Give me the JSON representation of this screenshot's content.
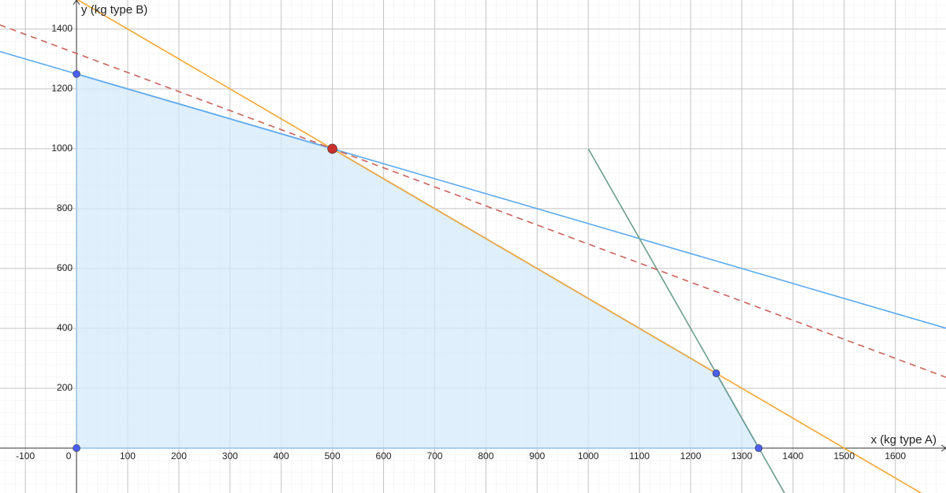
{
  "chart_data": {
    "type": "line",
    "xlabel": "x (kg type A)",
    "ylabel": "y (kg type B)",
    "xlim": [
      -149.5,
      1699
    ],
    "ylim": [
      -150,
      1497
    ],
    "xticks": [
      -100,
      0,
      100,
      200,
      300,
      400,
      500,
      600,
      700,
      800,
      900,
      1000,
      1100,
      1200,
      1300,
      1400,
      1500,
      1600
    ],
    "yticks": [
      200,
      400,
      600,
      800,
      1000,
      1200,
      1400
    ],
    "grid": true,
    "series": [
      {
        "color": "#5aaaf0",
        "x": [
          -150,
          1700
        ],
        "values": [
          1325,
          400
        ]
      },
      {
        "color": "#f5a733",
        "x": [
          0,
          1700
        ],
        "values": [
          1500,
          -200
        ]
      },
      {
        "color": "#6b9e8c",
        "x": [
          1000,
          1400
        ],
        "values": [
          1000,
          -200
        ]
      },
      {
        "color": "#cc625a",
        "dashed": true,
        "x": [
          -150,
          1700
        ],
        "values": [
          1414,
          236
        ]
      }
    ],
    "region": {
      "color": "#d6e9fb",
      "x": [
        0,
        0,
        500,
        1250,
        1333,
        0
      ],
      "values": [
        0,
        1250,
        1000,
        250,
        0,
        0
      ]
    },
    "points": {
      "color": "#4a5ff0",
      "x": [
        0,
        0,
        1250,
        1333
      ],
      "values": [
        1250,
        0,
        250,
        0
      ]
    },
    "optimum": {
      "color": "#c9302c",
      "x": [
        500
      ],
      "values": [
        1000
      ]
    }
  }
}
